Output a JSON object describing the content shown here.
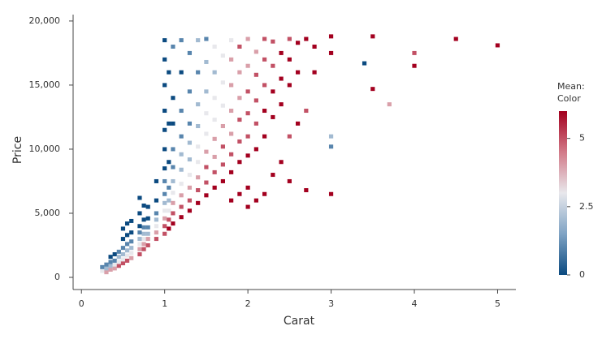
{
  "chart_data": {
    "type": "binned-heatmap",
    "x_label": "Carat",
    "y_label": "Price",
    "xlim": [
      -0.1,
      5.22
    ],
    "ylim": [
      -950,
      20500
    ],
    "xticks": [
      0,
      1,
      2,
      3,
      4,
      5
    ],
    "yticks": [
      0,
      {
        "value": 5000,
        "label": "5,000"
      },
      {
        "value": 10000,
        "label": "10,000"
      },
      {
        "value": 15000,
        "label": "15,000"
      },
      {
        "value": 20000,
        "label": "20,000"
      }
    ],
    "colorbar": {
      "title": [
        "Mean:",
        "Color"
      ],
      "lim": [
        0,
        6
      ],
      "ticks": [
        0,
        2.5,
        5
      ],
      "colors": [
        "#0b4a80",
        "#7fa3c4",
        "#e8e8ec",
        "#d27a88",
        "#a3001f"
      ]
    },
    "points": [
      [
        0.25,
        500,
        3
      ],
      [
        0.25,
        800,
        1
      ],
      [
        0.3,
        400,
        4
      ],
      [
        0.3,
        700,
        2
      ],
      [
        0.3,
        1000,
        1
      ],
      [
        0.35,
        600,
        4
      ],
      [
        0.35,
        900,
        2
      ],
      [
        0.35,
        1200,
        1
      ],
      [
        0.35,
        1600,
        0
      ],
      [
        0.4,
        700,
        4
      ],
      [
        0.4,
        1000,
        3
      ],
      [
        0.4,
        1300,
        1
      ],
      [
        0.4,
        1800,
        0
      ],
      [
        0.45,
        900,
        5
      ],
      [
        0.45,
        1200,
        3
      ],
      [
        0.45,
        1600,
        2
      ],
      [
        0.45,
        2000,
        1
      ],
      [
        0.5,
        1100,
        5
      ],
      [
        0.5,
        1400,
        3
      ],
      [
        0.5,
        1800,
        2
      ],
      [
        0.5,
        2300,
        1
      ],
      [
        0.5,
        3000,
        0
      ],
      [
        0.5,
        3800,
        0
      ],
      [
        0.55,
        1300,
        5
      ],
      [
        0.55,
        1700,
        3
      ],
      [
        0.55,
        2100,
        2
      ],
      [
        0.55,
        2600,
        1
      ],
      [
        0.55,
        3300,
        0
      ],
      [
        0.55,
        4200,
        0
      ],
      [
        0.6,
        1500,
        4
      ],
      [
        0.6,
        1900,
        3
      ],
      [
        0.6,
        2300,
        2
      ],
      [
        0.6,
        2800,
        1
      ],
      [
        0.6,
        3500,
        0
      ],
      [
        0.6,
        4400,
        0
      ],
      [
        0.7,
        1800,
        5
      ],
      [
        0.7,
        2200,
        4
      ],
      [
        0.7,
        2600,
        3
      ],
      [
        0.7,
        3000,
        2
      ],
      [
        0.7,
        3500,
        1
      ],
      [
        0.7,
        4000,
        0
      ],
      [
        0.7,
        5000,
        0
      ],
      [
        0.7,
        6200,
        0
      ],
      [
        0.75,
        2200,
        5
      ],
      [
        0.75,
        2600,
        4
      ],
      [
        0.75,
        3000,
        3
      ],
      [
        0.75,
        3400,
        2
      ],
      [
        0.75,
        3900,
        1
      ],
      [
        0.75,
        4500,
        0
      ],
      [
        0.75,
        5600,
        0
      ],
      [
        0.8,
        2500,
        5
      ],
      [
        0.8,
        3000,
        4
      ],
      [
        0.8,
        3400,
        2
      ],
      [
        0.8,
        3900,
        1
      ],
      [
        0.8,
        4600,
        0
      ],
      [
        0.8,
        5500,
        0
      ],
      [
        0.9,
        3000,
        5
      ],
      [
        0.9,
        3500,
        4
      ],
      [
        0.9,
        4000,
        3
      ],
      [
        0.9,
        4500,
        2
      ],
      [
        0.9,
        5000,
        1
      ],
      [
        0.9,
        6000,
        0
      ],
      [
        0.9,
        7500,
        0
      ],
      [
        1.0,
        3400,
        5
      ],
      [
        1.0,
        4000,
        5
      ],
      [
        1.0,
        4600,
        4
      ],
      [
        1.0,
        5200,
        3
      ],
      [
        1.0,
        5800,
        2
      ],
      [
        1.0,
        6500,
        1
      ],
      [
        1.0,
        7500,
        1
      ],
      [
        1.0,
        8500,
        0
      ],
      [
        1.0,
        10000,
        0
      ],
      [
        1.0,
        11500,
        0
      ],
      [
        1.0,
        13000,
        0
      ],
      [
        1.0,
        15000,
        0
      ],
      [
        1.0,
        17000,
        0
      ],
      [
        1.0,
        18500,
        0
      ],
      [
        1.05,
        3800,
        6
      ],
      [
        1.05,
        4500,
        5
      ],
      [
        1.05,
        5200,
        3
      ],
      [
        1.05,
        6000,
        2
      ],
      [
        1.05,
        7000,
        1
      ],
      [
        1.05,
        9000,
        0
      ],
      [
        1.05,
        12000,
        0
      ],
      [
        1.05,
        16000,
        0
      ],
      [
        1.1,
        4200,
        6
      ],
      [
        1.1,
        5000,
        5
      ],
      [
        1.1,
        5800,
        4
      ],
      [
        1.1,
        6600,
        3
      ],
      [
        1.1,
        7500,
        2
      ],
      [
        1.1,
        8600,
        1
      ],
      [
        1.1,
        10000,
        1
      ],
      [
        1.1,
        12000,
        0
      ],
      [
        1.1,
        14000,
        0
      ],
      [
        1.1,
        18000,
        1
      ],
      [
        1.2,
        4700,
        6
      ],
      [
        1.2,
        5500,
        5
      ],
      [
        1.2,
        6400,
        4
      ],
      [
        1.2,
        7300,
        3
      ],
      [
        1.2,
        8400,
        2
      ],
      [
        1.2,
        9600,
        2
      ],
      [
        1.2,
        11000,
        1
      ],
      [
        1.2,
        13000,
        1
      ],
      [
        1.2,
        16000,
        0
      ],
      [
        1.2,
        18500,
        1
      ],
      [
        1.3,
        5200,
        6
      ],
      [
        1.3,
        6000,
        5
      ],
      [
        1.3,
        7000,
        4
      ],
      [
        1.3,
        8000,
        3
      ],
      [
        1.3,
        9200,
        2
      ],
      [
        1.3,
        10500,
        2
      ],
      [
        1.3,
        12000,
        1
      ],
      [
        1.3,
        14500,
        1
      ],
      [
        1.3,
        17500,
        1
      ],
      [
        1.4,
        5800,
        6
      ],
      [
        1.4,
        6800,
        5
      ],
      [
        1.4,
        7800,
        4
      ],
      [
        1.4,
        9000,
        3
      ],
      [
        1.4,
        10200,
        3
      ],
      [
        1.4,
        11800,
        2
      ],
      [
        1.4,
        13500,
        2
      ],
      [
        1.4,
        16000,
        1
      ],
      [
        1.4,
        18500,
        2
      ],
      [
        1.5,
        6400,
        6
      ],
      [
        1.5,
        7400,
        5
      ],
      [
        1.5,
        8600,
        5
      ],
      [
        1.5,
        9800,
        4
      ],
      [
        1.5,
        11200,
        3
      ],
      [
        1.5,
        12800,
        3
      ],
      [
        1.5,
        14500,
        2
      ],
      [
        1.5,
        16800,
        2
      ],
      [
        1.5,
        18600,
        1
      ],
      [
        1.6,
        7000,
        6
      ],
      [
        1.6,
        8200,
        5
      ],
      [
        1.6,
        9400,
        4
      ],
      [
        1.6,
        10800,
        4
      ],
      [
        1.6,
        12300,
        3
      ],
      [
        1.6,
        14000,
        3
      ],
      [
        1.6,
        16000,
        2
      ],
      [
        1.6,
        18000,
        3
      ],
      [
        1.7,
        7500,
        6
      ],
      [
        1.7,
        8800,
        5
      ],
      [
        1.7,
        10200,
        5
      ],
      [
        1.7,
        11800,
        4
      ],
      [
        1.7,
        13400,
        3
      ],
      [
        1.7,
        15200,
        3
      ],
      [
        1.7,
        17300,
        3
      ],
      [
        1.8,
        6000,
        6
      ],
      [
        1.8,
        8200,
        6
      ],
      [
        1.8,
        9600,
        5
      ],
      [
        1.8,
        11200,
        4
      ],
      [
        1.8,
        13000,
        4
      ],
      [
        1.8,
        15000,
        4
      ],
      [
        1.8,
        17000,
        4
      ],
      [
        1.8,
        18500,
        3
      ],
      [
        1.9,
        6500,
        6
      ],
      [
        1.9,
        9000,
        6
      ],
      [
        1.9,
        10600,
        5
      ],
      [
        1.9,
        12300,
        5
      ],
      [
        1.9,
        14000,
        4
      ],
      [
        1.9,
        16000,
        4
      ],
      [
        1.9,
        18000,
        5
      ],
      [
        2.0,
        5500,
        6
      ],
      [
        2.0,
        7000,
        6
      ],
      [
        2.0,
        9500,
        6
      ],
      [
        2.0,
        11000,
        5
      ],
      [
        2.0,
        12800,
        5
      ],
      [
        2.0,
        14500,
        5
      ],
      [
        2.0,
        16500,
        4
      ],
      [
        2.0,
        18600,
        4
      ],
      [
        2.1,
        6000,
        6
      ],
      [
        2.1,
        10000,
        6
      ],
      [
        2.1,
        12000,
        5
      ],
      [
        2.1,
        13800,
        5
      ],
      [
        2.1,
        15800,
        5
      ],
      [
        2.1,
        17600,
        4
      ],
      [
        2.2,
        6500,
        6
      ],
      [
        2.2,
        11000,
        6
      ],
      [
        2.2,
        13000,
        6
      ],
      [
        2.2,
        15000,
        5
      ],
      [
        2.2,
        17000,
        5
      ],
      [
        2.2,
        18600,
        5
      ],
      [
        2.3,
        8000,
        6
      ],
      [
        2.3,
        12500,
        6
      ],
      [
        2.3,
        14500,
        6
      ],
      [
        2.3,
        16500,
        5
      ],
      [
        2.3,
        18400,
        5
      ],
      [
        2.4,
        9000,
        6
      ],
      [
        2.4,
        13500,
        6
      ],
      [
        2.4,
        15500,
        6
      ],
      [
        2.4,
        17500,
        6
      ],
      [
        2.5,
        7500,
        6
      ],
      [
        2.5,
        11000,
        5
      ],
      [
        2.5,
        15000,
        6
      ],
      [
        2.5,
        17000,
        6
      ],
      [
        2.5,
        18600,
        5
      ],
      [
        2.6,
        12000,
        6
      ],
      [
        2.6,
        16000,
        6
      ],
      [
        2.6,
        18300,
        6
      ],
      [
        2.7,
        6800,
        6
      ],
      [
        2.7,
        13000,
        5
      ],
      [
        2.7,
        18600,
        6
      ],
      [
        2.8,
        16000,
        6
      ],
      [
        2.8,
        18000,
        6
      ],
      [
        3.0,
        6500,
        6
      ],
      [
        3.0,
        10200,
        1
      ],
      [
        3.0,
        11000,
        2
      ],
      [
        3.0,
        17500,
        6
      ],
      [
        3.0,
        18800,
        6
      ],
      [
        3.4,
        16700,
        0
      ],
      [
        3.5,
        18800,
        6
      ],
      [
        3.5,
        14700,
        6
      ],
      [
        3.7,
        13500,
        4
      ],
      [
        4.0,
        16500,
        6
      ],
      [
        4.0,
        17500,
        5
      ],
      [
        4.5,
        18600,
        6
      ],
      [
        5.0,
        18100,
        6
      ]
    ]
  }
}
